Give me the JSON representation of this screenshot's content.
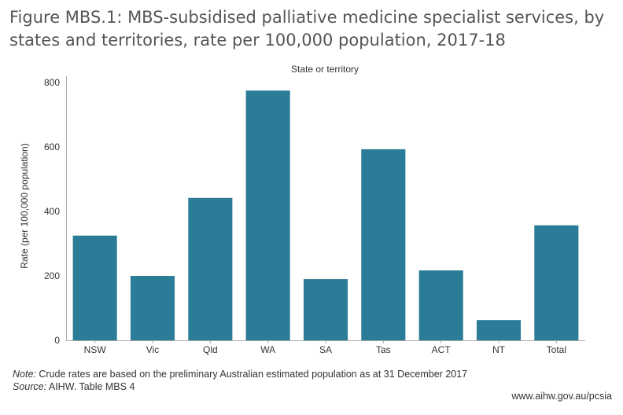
{
  "title": "Figure MBS.1: MBS-subsidised palliative medicine specialist services, by states and territories, rate per 100,000 population, 2017-18",
  "chart_data": {
    "type": "bar",
    "title": "Figure MBS.1: MBS-subsidised palliative medicine specialist services, by states and territories, rate per 100,000 population, 2017-18",
    "xlabel": "State or territory",
    "ylabel": "Rate (per 100,000 population)",
    "categories": [
      "NSW",
      "Vic",
      "Qld",
      "WA",
      "SA",
      "Tas",
      "ACT",
      "NT",
      "Total"
    ],
    "values": [
      325,
      200,
      442,
      775,
      190,
      593,
      217,
      63,
      357
    ],
    "ylim": [
      0,
      800
    ],
    "yticks": [
      0,
      200,
      400,
      600,
      800
    ],
    "grid": false,
    "legend": "none",
    "bar_color": "#2a7c97"
  },
  "footer": {
    "note_label": "Note:",
    "note_text": " Crude rates are based on the preliminary Australian estimated population as at 31 December 2017",
    "source_label": "Source:",
    "source_text": " AIHW. Table MBS 4",
    "website": "www.aihw.gov.au/pcsia"
  }
}
